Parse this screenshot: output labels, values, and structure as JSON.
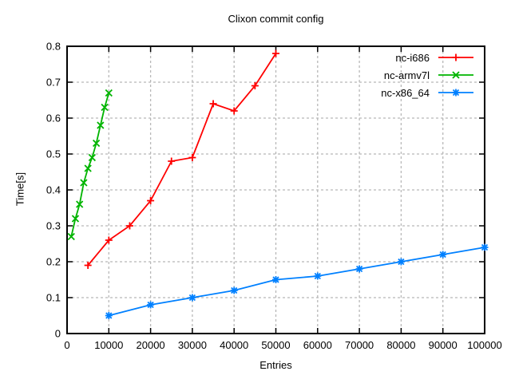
{
  "chart_data": {
    "type": "line",
    "title": "Clixon commit config",
    "xlabel": "Entries",
    "ylabel": "Time[s]",
    "xlim": [
      0,
      100000
    ],
    "ylim": [
      0,
      0.8
    ],
    "xticks": [
      0,
      10000,
      20000,
      30000,
      40000,
      50000,
      60000,
      70000,
      80000,
      90000,
      100000
    ],
    "yticks": [
      0,
      0.1,
      0.2,
      0.3,
      0.4,
      0.5,
      0.6,
      0.7,
      0.8
    ],
    "grid": true,
    "legend_position": "top-right-inside",
    "grid_color": "#b8b8b8",
    "border_color": "#000000",
    "series": [
      {
        "name": "nc-i686",
        "color": "#ff0000",
        "marker": "plus",
        "points": [
          [
            5000,
            0.19
          ],
          [
            10000,
            0.26
          ],
          [
            15000,
            0.3
          ],
          [
            20000,
            0.37
          ],
          [
            25000,
            0.48
          ],
          [
            30000,
            0.49
          ],
          [
            35000,
            0.64
          ],
          [
            40000,
            0.62
          ],
          [
            45000,
            0.69
          ],
          [
            50000,
            0.78
          ]
        ]
      },
      {
        "name": "nc-armv7l",
        "color": "#00b400",
        "marker": "cross",
        "points": [
          [
            1000,
            0.27
          ],
          [
            2000,
            0.32
          ],
          [
            3000,
            0.36
          ],
          [
            4000,
            0.42
          ],
          [
            5000,
            0.46
          ],
          [
            6000,
            0.49
          ],
          [
            7000,
            0.53
          ],
          [
            8000,
            0.58
          ],
          [
            9000,
            0.63
          ],
          [
            10000,
            0.67
          ]
        ]
      },
      {
        "name": "nc-x86_64",
        "color": "#0080ff",
        "marker": "asterisk",
        "points": [
          [
            10000,
            0.05
          ],
          [
            20000,
            0.08
          ],
          [
            30000,
            0.1
          ],
          [
            40000,
            0.12
          ],
          [
            50000,
            0.15
          ],
          [
            60000,
            0.16
          ],
          [
            70000,
            0.18
          ],
          [
            80000,
            0.2
          ],
          [
            90000,
            0.22
          ],
          [
            100000,
            0.24
          ]
        ]
      }
    ]
  }
}
